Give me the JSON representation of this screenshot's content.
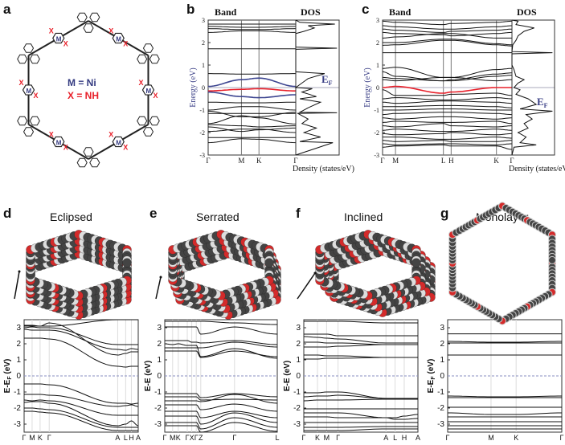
{
  "panels": {
    "a": {
      "label": "a",
      "legend_m": "M = Ni",
      "legend_x": "X = NH",
      "atom_m": "M",
      "atom_x": "X"
    },
    "b": {
      "label": "b",
      "band": "Band",
      "dos": "DOS",
      "ylabel": "Energy (eV)",
      "xlabel": "Density (states/eV)",
      "ef": "E",
      "ef_sub": "F"
    },
    "c": {
      "label": "c",
      "band": "Band",
      "dos": "DOS",
      "ylabel": "Energy (eV)",
      "xlabel": "Density (states/eV)",
      "ef": "E",
      "ef_sub": "F"
    },
    "d": {
      "label": "d",
      "title": "Eclipsed"
    },
    "e": {
      "label": "e",
      "title": "Serrated"
    },
    "f": {
      "label": "f",
      "title": "Inclined"
    },
    "g": {
      "label": "g",
      "title": "Monolayer"
    }
  },
  "colors": {
    "highlight_band": "#e8202a",
    "blue_band": "#3d4590",
    "axis_label": "#3a3f86",
    "fermi_dash": "#8a8fc0",
    "atom_c": "#444444",
    "atom_h": "#dddddd",
    "atom_o": "#d42a2a"
  },
  "chart_data": [
    {
      "id": "b",
      "type": "line",
      "ylim": [
        -3,
        3
      ],
      "yticks": [
        -3,
        -2,
        -1,
        0,
        1,
        2,
        3
      ],
      "kpoints": [
        "Γ",
        "M",
        "K",
        "Γ"
      ],
      "kpos": [
        0,
        0.38,
        0.58,
        1
      ],
      "bands": [
        [
          2.82,
          2.82,
          2.82,
          2.82
        ],
        [
          2.72,
          2.68,
          2.68,
          2.72
        ],
        [
          2.62,
          2.58,
          2.58,
          2.62
        ],
        [
          2.45,
          2.52,
          2.52,
          2.45
        ],
        [
          1.72,
          1.72,
          1.72,
          1.72
        ],
        [
          0.62,
          0.6,
          0.6,
          0.62
        ],
        {
          "c": "blue",
          "v": [
            0.05,
            0.35,
            0.42,
            0.05
          ]
        },
        {
          "c": "red",
          "v": [
            -0.15,
            -0.08,
            -0.05,
            -0.15
          ]
        },
        {
          "c": "blue",
          "v": [
            -0.2,
            -0.4,
            -0.45,
            -0.32
          ]
        },
        [
          -0.65,
          -0.68,
          -0.68,
          -0.65
        ],
        [
          -1.0,
          -0.85,
          -0.85,
          -1.0
        ],
        [
          -1.15,
          -1.15,
          -1.15,
          -1.15
        ],
        [
          -1.05,
          -1.3,
          -1.3,
          -1.1
        ],
        [
          -1.6,
          -1.25,
          -1.35,
          -1.62
        ],
        [
          -1.65,
          -1.7,
          -1.75,
          -1.7
        ],
        [
          -1.75,
          -1.95,
          -1.88,
          -1.8
        ],
        [
          -1.95,
          -1.85,
          -1.85,
          -2.0
        ],
        [
          -2.22,
          -2.22,
          -2.22,
          -2.22
        ],
        [
          -2.45,
          -2.28,
          -2.3,
          -2.45
        ]
      ],
      "dos": [
        [
          -3,
          0
        ],
        [
          -2.45,
          0.9
        ],
        [
          -2.4,
          0.1
        ],
        [
          -2.2,
          0.6
        ],
        [
          -2.0,
          0.2
        ],
        [
          -1.8,
          0.5
        ],
        [
          -1.6,
          0.15
        ],
        [
          -1.4,
          0.3
        ],
        [
          -1.15,
          0.05
        ],
        [
          -1.12,
          1
        ],
        [
          -1.1,
          0.1
        ],
        [
          -0.9,
          0.3
        ],
        [
          -0.65,
          0.6
        ],
        [
          -0.5,
          0.1
        ],
        [
          -0.4,
          0.5
        ],
        [
          -0.2,
          0.15
        ],
        [
          -0.05,
          0.4
        ],
        [
          0.0,
          0.0
        ],
        [
          0.2,
          0.15
        ],
        [
          0.4,
          0.3
        ],
        [
          0.62,
          0.7
        ],
        [
          0.7,
          0
        ],
        [
          1.7,
          0
        ],
        [
          1.75,
          1
        ],
        [
          1.8,
          0
        ],
        [
          2.4,
          0
        ],
        [
          2.5,
          0.2
        ],
        [
          2.65,
          0.45
        ],
        [
          2.75,
          0.3
        ],
        [
          2.82,
          0.95
        ],
        [
          2.9,
          0.1
        ],
        [
          3,
          0
        ]
      ]
    },
    {
      "id": "c",
      "type": "line",
      "ylim": [
        -3,
        3
      ],
      "yticks": [
        -3,
        -2,
        -1,
        0,
        1,
        2,
        3
      ],
      "kpoints": [
        "Γ",
        "M",
        "L",
        "H",
        "K",
        "Γ"
      ],
      "kpos": [
        0,
        0.1,
        0.47,
        0.53,
        0.88,
        1
      ],
      "bands": [
        [
          2.95,
          2.9,
          2.8,
          2.85,
          2.9,
          2.95
        ],
        [
          2.75,
          2.7,
          2.6,
          2.6,
          2.7,
          2.75
        ],
        [
          2.6,
          2.55,
          2.45,
          2.5,
          2.55,
          2.6
        ],
        [
          2.45,
          2.4,
          2.35,
          2.3,
          2.4,
          2.45
        ],
        [
          2.2,
          2.25,
          2.4,
          2.4,
          2.2,
          2.2
        ],
        [
          2.0,
          2.0,
          2.15,
          2.15,
          1.95,
          1.9
        ],
        [
          1.88,
          1.9,
          2.1,
          2.1,
          1.9,
          1.85
        ],
        [
          1.55,
          1.55,
          1.55,
          1.55,
          1.55,
          1.55
        ],
        [
          0.85,
          0.9,
          0.45,
          0.45,
          0.8,
          0.85
        ],
        [
          0.7,
          0.5,
          0.3,
          0.35,
          0.6,
          0.65
        ],
        [
          0.45,
          0.4,
          0.3,
          0.3,
          0.5,
          0.55
        ],
        [
          0.35,
          0.3,
          0.45,
          0.45,
          0.3,
          0.35
        ],
        {
          "c": "red",
          "v": [
            0,
            0.05,
            -0.25,
            -0.2,
            0,
            0
          ]
        },
        [
          -0.1,
          -0.35,
          -0.35,
          -0.3,
          -0.25,
          -0.35
        ],
        [
          -0.5,
          -0.45,
          -0.55,
          -0.55,
          -0.45,
          -0.5
        ],
        [
          -0.65,
          -0.7,
          -0.6,
          -0.6,
          -0.65,
          -0.7
        ],
        [
          -0.85,
          -0.85,
          -0.8,
          -0.8,
          -0.85,
          -0.9
        ],
        [
          -1.0,
          -1.0,
          -0.95,
          -0.95,
          -1.0,
          -1.0
        ],
        [
          -1.2,
          -1.15,
          -1.1,
          -1.1,
          -1.15,
          -1.2
        ],
        [
          -1.35,
          -1.4,
          -1.3,
          -1.3,
          -1.4,
          -1.35
        ],
        [
          -1.55,
          -1.5,
          -1.55,
          -1.55,
          -1.5,
          -1.6
        ],
        [
          -1.7,
          -1.75,
          -1.6,
          -1.7,
          -1.75,
          -1.7
        ],
        [
          -1.9,
          -1.85,
          -1.95,
          -1.95,
          -1.85,
          -1.9
        ],
        [
          -2.05,
          -2.1,
          -2.05,
          -2.0,
          -2.1,
          -2.05
        ],
        [
          -2.2,
          -2.2,
          -2.3,
          -2.3,
          -2.2,
          -2.25
        ],
        [
          -2.35,
          -2.4,
          -2.35,
          -2.4,
          -2.4,
          -2.35
        ],
        [
          -2.5,
          -2.55,
          -2.5,
          -2.5,
          -2.55,
          -2.5
        ],
        [
          -2.65,
          -2.6,
          -2.55,
          -2.6,
          -2.6,
          -2.75
        ]
      ],
      "dos": [
        [
          -3,
          0
        ],
        [
          -2.65,
          0.05
        ],
        [
          -2.55,
          0.6
        ],
        [
          -2.45,
          0.2
        ],
        [
          -2.2,
          0.35
        ],
        [
          -2.0,
          0.15
        ],
        [
          -1.8,
          0.4
        ],
        [
          -1.6,
          0.3
        ],
        [
          -1.4,
          0.5
        ],
        [
          -1.2,
          0.35
        ],
        [
          -1.05,
          1
        ],
        [
          -0.95,
          0.2
        ],
        [
          -0.75,
          0.6
        ],
        [
          -0.5,
          0.4
        ],
        [
          -0.3,
          0.1
        ],
        [
          -0.1,
          0.2
        ],
        [
          0,
          0.05
        ],
        [
          0.2,
          0.15
        ],
        [
          0.35,
          0.3
        ],
        [
          0.5,
          0.1
        ],
        [
          0.8,
          0.05
        ],
        [
          1.0,
          0
        ],
        [
          1.5,
          0
        ],
        [
          1.55,
          1
        ],
        [
          1.6,
          0
        ],
        [
          1.9,
          0.02
        ],
        [
          2.1,
          0.1
        ],
        [
          2.3,
          0.15
        ],
        [
          2.5,
          0.3
        ],
        [
          2.65,
          0.55
        ],
        [
          2.8,
          0.1
        ],
        [
          2.95,
          0.15
        ],
        [
          3,
          0
        ]
      ]
    },
    {
      "id": "d",
      "type": "line",
      "ylabel": "E-E",
      "ylabel_sub": "F",
      "ylabel_unit": "(eV)",
      "ylim": [
        -3.5,
        3.5
      ],
      "yticks": [
        -3,
        -2,
        -1,
        0,
        1,
        2,
        3
      ],
      "kpoints": [
        "Γ",
        "M",
        "K",
        "Γ",
        "A",
        "L",
        "H",
        "A"
      ],
      "kpos": [
        0,
        0.07,
        0.14,
        0.22,
        0.82,
        0.89,
        0.94,
        1
      ],
      "bands": [
        [
          3.15,
          3.15,
          3.1,
          3.1,
          3.5,
          3.5,
          3.5,
          3.5
        ],
        [
          3.0,
          3.05,
          3.0,
          3.0,
          1.95,
          1.95,
          1.95,
          1.95
        ],
        [
          2.9,
          2.85,
          2.85,
          2.85,
          1.65,
          1.6,
          1.7,
          1.65
        ],
        [
          2.35,
          2.35,
          2.35,
          2.3,
          0.6,
          0.55,
          0.6,
          0.6
        ],
        [
          3.1,
          3.1,
          3.1,
          3.3,
          1.3,
          1.4,
          1.5,
          1.5
        ],
        [
          -0.5,
          -0.5,
          -0.5,
          -0.55,
          -1.7,
          -1.7,
          -1.75,
          -1.7
        ],
        [
          -1.15,
          -1.15,
          -1.15,
          -1.2,
          -1.9,
          -1.85,
          -1.8,
          -1.9
        ],
        [
          -1.5,
          -1.55,
          -1.5,
          -1.55,
          -2.45,
          -2.45,
          -2.45,
          -2.45
        ],
        [
          -1.65,
          -1.6,
          -1.6,
          -1.7,
          -3.1,
          -3.0,
          -2.8,
          -3.1
        ],
        [
          -2.0,
          -2.0,
          -2.05,
          -2.1,
          -3.2,
          -3.2,
          -3.2,
          -3.2
        ],
        [
          -2.2,
          -2.2,
          -2.25,
          -2.3,
          -3.4,
          -3.4,
          -3.4,
          -3.4
        ]
      ]
    },
    {
      "id": "e",
      "type": "line",
      "ylabel": "E-E",
      "ylabel_unit": "(eV)",
      "ylim": [
        -3.5,
        3.5
      ],
      "yticks": [
        -3,
        -2,
        -1,
        0,
        1,
        2,
        3
      ],
      "kpoints": [
        "Γ",
        "M",
        "K",
        "Γ",
        "X",
        "Γ",
        "Z",
        "Γ",
        "L"
      ],
      "kpos": [
        0,
        0.07,
        0.12,
        0.2,
        0.24,
        0.28,
        0.32,
        0.62,
        1
      ],
      "bands": [
        [
          3.4,
          3.4,
          3.4,
          3.4,
          3.4,
          3.4,
          3.4,
          3.3,
          3.2
        ],
        [
          3.05,
          3.05,
          3.05,
          3.05,
          3.05,
          3.05,
          2.6,
          3.05,
          2.6
        ],
        [
          2.2,
          2.2,
          2.2,
          2.2,
          2.1,
          2.1,
          2.05,
          2.2,
          1.95
        ],
        [
          2.0,
          1.95,
          2.0,
          1.9,
          1.9,
          1.9,
          1.2,
          1.7,
          1.1
        ],
        [
          1.75,
          1.75,
          1.75,
          1.75,
          1.75,
          1.75,
          1.75,
          2.1,
          1.8
        ],
        [
          1.55,
          1.55,
          1.55,
          1.55,
          1.55,
          1.55,
          1.15,
          1.55,
          1.2
        ],
        [
          -1.1,
          -1.1,
          -1.1,
          -1.1,
          -1.1,
          -1.1,
          -1.35,
          -1.1,
          -1.3
        ],
        [
          -1.3,
          -1.3,
          -1.3,
          -1.3,
          -1.3,
          -1.3,
          -1.5,
          -1.45,
          -1.5
        ],
        [
          -1.55,
          -1.55,
          -1.55,
          -1.55,
          -1.55,
          -1.55,
          -1.6,
          -1.15,
          -1.7
        ],
        [
          -1.8,
          -1.8,
          -1.8,
          -1.8,
          -1.8,
          -1.8,
          -2.1,
          -1.75,
          -2.2
        ],
        [
          -2.2,
          -2.2,
          -2.2,
          -2.2,
          -2.2,
          -2.2,
          -2.6,
          -2.2,
          -2.6
        ],
        [
          -2.5,
          -2.5,
          -2.5,
          -2.5,
          -2.5,
          -2.5,
          -3.0,
          -2.3,
          -2.9
        ],
        [
          -2.9,
          -2.9,
          -2.9,
          -2.9,
          -2.9,
          -2.9,
          -3.3,
          -2.6,
          -3.2
        ],
        [
          -3.1,
          -3.1,
          -3.1,
          -3.1,
          -3.1,
          -3.1,
          -3.5,
          -2.9,
          -3.45
        ]
      ]
    },
    {
      "id": "f",
      "type": "line",
      "ylabel": "E-E",
      "ylabel_unit": "(eV)",
      "ylim": [
        -3.5,
        3.5
      ],
      "yticks": [
        -3,
        -2,
        -1,
        0,
        1,
        2,
        3
      ],
      "kpoints": [
        "Γ",
        "K",
        "M",
        "Γ",
        "A",
        "L",
        "H",
        "A"
      ],
      "kpos": [
        0,
        0.12,
        0.2,
        0.3,
        0.72,
        0.8,
        0.88,
        1
      ],
      "bands": [
        [
          3.4,
          3.4,
          3.4,
          3.4,
          3.3,
          3.3,
          3.3,
          3.3
        ],
        [
          2.6,
          2.6,
          2.6,
          2.5,
          2.5,
          2.5,
          2.5,
          2.5
        ],
        [
          2.45,
          2.4,
          2.35,
          2.3,
          2.05,
          2.05,
          2.05,
          2.05
        ],
        [
          2.1,
          2.1,
          2.05,
          2.05,
          1.95,
          1.95,
          1.95,
          1.95
        ],
        [
          1.8,
          1.8,
          1.8,
          1.85,
          1.95,
          1.95,
          1.95,
          1.95
        ],
        [
          1.3,
          1.3,
          1.25,
          1.25,
          1.15,
          1.15,
          1.15,
          1.15
        ],
        [
          1.05,
          1.05,
          1.1,
          1.1,
          1.15,
          1.15,
          1.15,
          1.15
        ],
        [
          -1.05,
          -1.05,
          -1.0,
          -1.0,
          -1.4,
          -1.4,
          -1.4,
          -1.4
        ],
        [
          -1.3,
          -1.25,
          -1.25,
          -1.2,
          -1.4,
          -1.4,
          -1.4,
          -1.4
        ],
        [
          -1.55,
          -1.5,
          -1.5,
          -1.5,
          -1.45,
          -1.45,
          -1.45,
          -1.45
        ],
        [
          -2.05,
          -2.05,
          -2.05,
          -2.05,
          -2.05,
          -2.05,
          -2.05,
          -2.05
        ],
        [
          -2.3,
          -2.3,
          -2.3,
          -2.3,
          -2.6,
          -2.6,
          -2.5,
          -2.4
        ],
        [
          -2.55,
          -2.55,
          -2.55,
          -2.6,
          -2.6,
          -2.7,
          -2.7,
          -2.65
        ],
        [
          -2.9,
          -2.9,
          -2.9,
          -2.9,
          -2.9,
          -2.9,
          -2.9,
          -2.9
        ],
        [
          -3.2,
          -3.2,
          -3.2,
          -3.2,
          -3.15,
          -3.15,
          -3.15,
          -3.15
        ],
        [
          -3.4,
          -3.4,
          -3.4,
          -3.4,
          -3.3,
          -3.3,
          -3.3,
          -3.3
        ]
      ]
    },
    {
      "id": "g",
      "type": "line",
      "ylabel": "E-E",
      "ylabel_sub": "F",
      "ylabel_unit": "(eV)",
      "ylim": [
        -3.5,
        3.5
      ],
      "yticks": [
        -3,
        -2,
        -1,
        0,
        1,
        2,
        3
      ],
      "kpoints": [
        "Γ",
        "M",
        "K",
        "Γ"
      ],
      "kpos": [
        0,
        0.38,
        0.6,
        1
      ],
      "bands": [
        [
          2.62,
          2.62,
          2.62,
          2.62
        ],
        [
          2.15,
          2.1,
          2.1,
          2.15
        ],
        [
          2.05,
          2.05,
          2.05,
          2.05
        ],
        [
          1.3,
          1.3,
          1.3,
          1.3
        ],
        [
          -1.25,
          -1.3,
          -1.3,
          -1.25
        ],
        [
          -1.35,
          -1.35,
          -1.35,
          -1.35
        ],
        [
          -1.95,
          -1.95,
          -1.95,
          -1.95
        ],
        [
          -2.3,
          -2.4,
          -2.4,
          -2.3
        ],
        [
          -2.55,
          -2.55,
          -2.55,
          -2.55
        ],
        [
          -2.85,
          -2.85,
          -2.85,
          -2.85
        ],
        [
          -3.1,
          -3.1,
          -3.1,
          -3.1
        ],
        [
          -3.3,
          -3.3,
          -3.3,
          -3.3
        ]
      ]
    }
  ]
}
